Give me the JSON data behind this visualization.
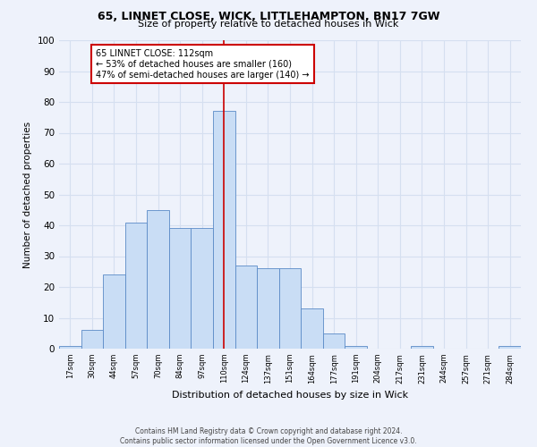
{
  "title_line1": "65, LINNET CLOSE, WICK, LITTLEHAMPTON, BN17 7GW",
  "title_line2": "Size of property relative to detached houses in Wick",
  "xlabel": "Distribution of detached houses by size in Wick",
  "ylabel": "Number of detached properties",
  "footer_line1": "Contains HM Land Registry data © Crown copyright and database right 2024.",
  "footer_line2": "Contains public sector information licensed under the Open Government Licence v3.0.",
  "bin_labels": [
    "17sqm",
    "30sqm",
    "44sqm",
    "57sqm",
    "70sqm",
    "84sqm",
    "97sqm",
    "110sqm",
    "124sqm",
    "137sqm",
    "151sqm",
    "164sqm",
    "177sqm",
    "191sqm",
    "204sqm",
    "217sqm",
    "231sqm",
    "244sqm",
    "257sqm",
    "271sqm",
    "284sqm"
  ],
  "bar_values": [
    1,
    6,
    24,
    41,
    45,
    39,
    39,
    77,
    27,
    26,
    26,
    13,
    5,
    1,
    0,
    0,
    1,
    0,
    0,
    0,
    1
  ],
  "bar_color": "#c9ddf5",
  "bar_edge_color": "#5b8ac7",
  "grid_color": "#d5dff0",
  "annotation_text": "65 LINNET CLOSE: 112sqm\n← 53% of detached houses are smaller (160)\n47% of semi-detached houses are larger (140) →",
  "annotation_box_color": "#ffffff",
  "annotation_box_edge": "#cc0000",
  "vline_x_index": 7,
  "vline_color": "#cc0000",
  "ylim": [
    0,
    100
  ],
  "yticks": [
    0,
    10,
    20,
    30,
    40,
    50,
    60,
    70,
    80,
    90,
    100
  ],
  "background_color": "#eef2fb"
}
